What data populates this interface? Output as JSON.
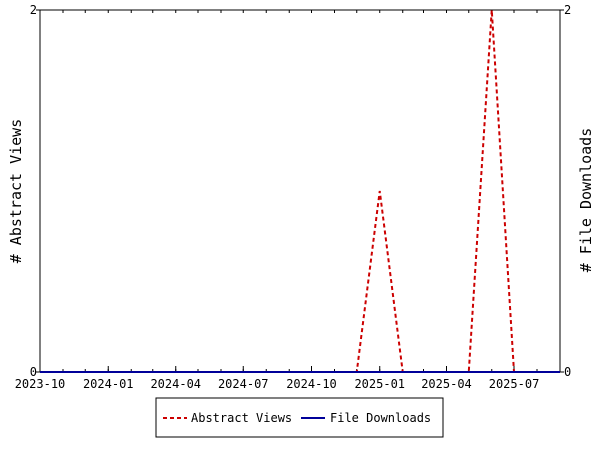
{
  "chart_data": {
    "type": "line",
    "title": "",
    "ylabel_left": "# Abstract Views",
    "ylabel_right": "# File Downloads",
    "ylim_left": [
      0,
      2
    ],
    "ylim_right": [
      0,
      2
    ],
    "xlim": [
      "2023-10-01",
      "2025-09-01"
    ],
    "x_tick_labels": [
      "2023-10",
      "2024-01",
      "2024-04",
      "2024-07",
      "2024-10",
      "2025-01",
      "2025-04",
      "2025-07"
    ],
    "y_tick_labels_left": [
      "0",
      "2"
    ],
    "y_tick_labels_right": [
      "0",
      "2"
    ],
    "legend_position": "bottom-center",
    "grid": false,
    "x": [
      "2023-10-01",
      "2023-11-01",
      "2023-12-01",
      "2024-01-01",
      "2024-02-01",
      "2024-03-01",
      "2024-04-01",
      "2024-05-01",
      "2024-06-01",
      "2024-07-01",
      "2024-08-01",
      "2024-09-01",
      "2024-10-01",
      "2024-11-01",
      "2024-12-01",
      "2025-01-01",
      "2025-02-01",
      "2025-03-01",
      "2025-04-01",
      "2025-05-01",
      "2025-06-01",
      "2025-07-01",
      "2025-08-01",
      "2025-09-01"
    ],
    "series": [
      {
        "name": "Abstract Views",
        "color": "#cc0000",
        "style": "dashed",
        "axis": "left",
        "values": [
          0,
          0,
          0,
          0,
          0,
          0,
          0,
          0,
          0,
          0,
          0,
          0,
          0,
          0,
          0,
          1,
          0,
          0,
          0,
          0,
          2,
          0,
          0,
          0
        ]
      },
      {
        "name": "File Downloads",
        "color": "#000099",
        "style": "solid",
        "axis": "right",
        "values": [
          0,
          0,
          0,
          0,
          0,
          0,
          0,
          0,
          0,
          0,
          0,
          0,
          0,
          0,
          0,
          0,
          0,
          0,
          0,
          0,
          0,
          0,
          0,
          0
        ]
      }
    ]
  }
}
